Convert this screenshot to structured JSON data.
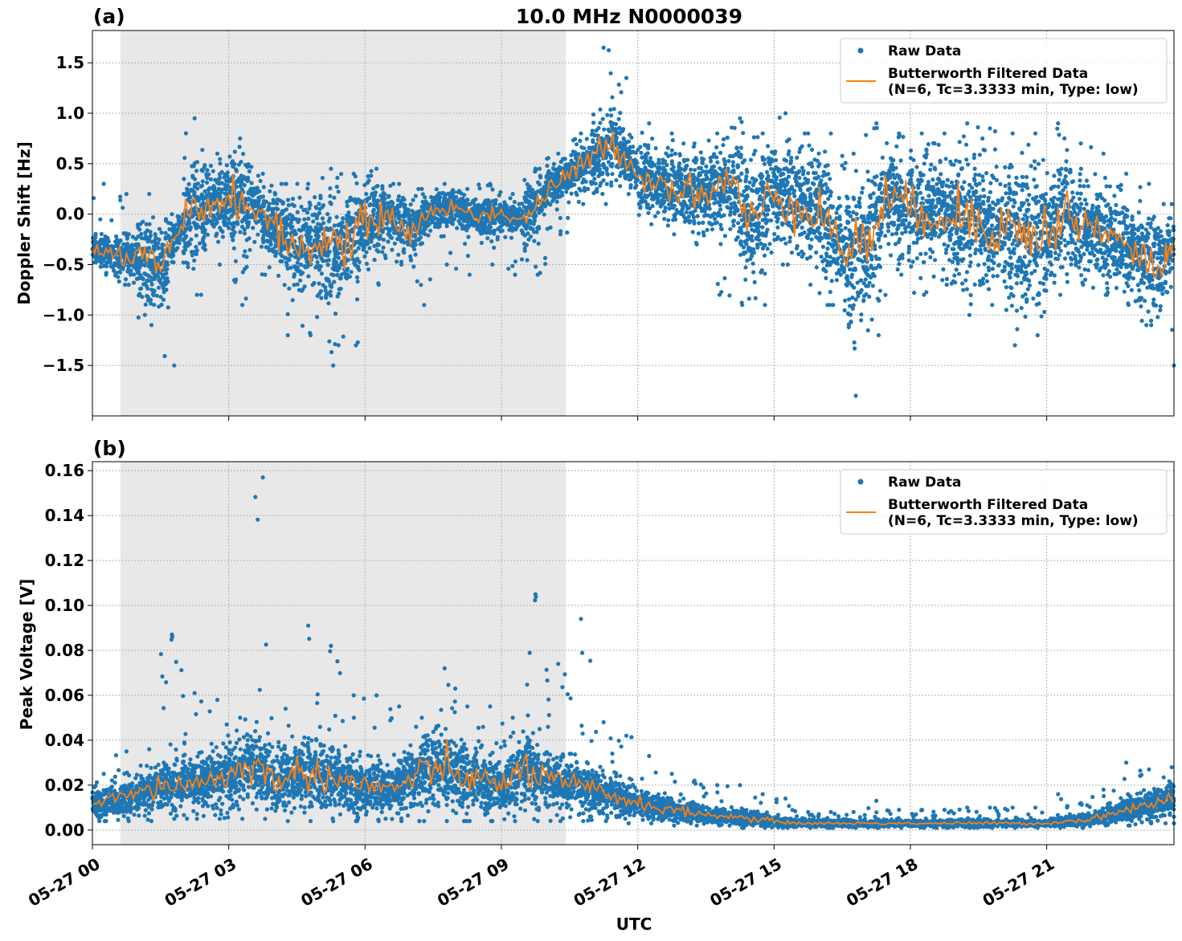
{
  "chart_data": [
    {
      "type": "scatter",
      "panel_label": "(a)",
      "title": "10.0 MHz N0000039",
      "xlabel": "",
      "ylabel": "Doppler Shift [Hz]",
      "ylim": [
        -2.0,
        1.82
      ],
      "yticks": [
        "1.5",
        "1.0",
        "0.5",
        "0.0",
        "−0.5",
        "−1.0",
        "−1.5"
      ],
      "ytick_values": [
        1.5,
        1.0,
        0.5,
        0.0,
        -0.5,
        -1.0,
        -1.5
      ],
      "xlim": [
        "05-27 00:00",
        "05-27 23:48"
      ],
      "grid": true,
      "legend_placement": "top-right",
      "shaded_interval": [
        "05-27 00:37",
        "05-27 10:25"
      ],
      "x": [
        "00:00",
        "00:30",
        "01:00",
        "01:30",
        "02:00",
        "02:30",
        "03:00",
        "03:30",
        "04:00",
        "04:30",
        "05:00",
        "05:30",
        "06:00",
        "06:30",
        "07:00",
        "07:30",
        "08:00",
        "08:30",
        "09:00",
        "09:30",
        "10:00",
        "10:30",
        "11:00",
        "11:30",
        "12:00",
        "12:30",
        "13:00",
        "13:30",
        "14:00",
        "14:30",
        "15:00",
        "15:30",
        "16:00",
        "16:30",
        "17:00",
        "17:30",
        "18:00",
        "18:30",
        "19:00",
        "19:30",
        "20:00",
        "20:30",
        "21:00",
        "21:30",
        "22:00",
        "22:30",
        "23:00",
        "23:30",
        "23:48"
      ],
      "series": [
        {
          "name": "Butterworth Filtered Data\n(N=6, Tc=3.3333 min, Type: low)",
          "kind": "line",
          "color": "#ff7f0e",
          "values": [
            -0.35,
            -0.4,
            -0.45,
            -0.55,
            -0.1,
            0.1,
            0.15,
            0.1,
            -0.15,
            -0.35,
            -0.3,
            -0.3,
            -0.1,
            0.0,
            -0.2,
            0.05,
            0.05,
            0.0,
            0.0,
            -0.05,
            0.2,
            0.4,
            0.55,
            0.7,
            0.4,
            0.3,
            0.25,
            0.2,
            0.35,
            -0.1,
            0.2,
            0.1,
            0.05,
            -0.35,
            -0.3,
            0.2,
            0.0,
            0.05,
            -0.05,
            -0.05,
            -0.15,
            -0.2,
            -0.2,
            0.0,
            -0.15,
            -0.25,
            -0.4,
            -0.55,
            -0.3
          ]
        },
        {
          "name": "Raw Data",
          "kind": "scatter",
          "color": "#1f77b4",
          "min": [
            -0.6,
            -0.7,
            -1.1,
            -1.5,
            -0.8,
            -0.5,
            -0.9,
            -0.6,
            -1.2,
            -1.2,
            -1.5,
            -1.3,
            -0.7,
            -0.5,
            -0.9,
            -0.5,
            -0.6,
            -0.5,
            -0.6,
            -0.6,
            -0.2,
            0.1,
            0.1,
            0.2,
            -0.1,
            -0.2,
            -0.3,
            -0.8,
            -0.9,
            -0.9,
            -0.5,
            -0.7,
            -0.9,
            -1.8,
            -1.2,
            -0.6,
            -0.8,
            -0.7,
            -1.0,
            -0.9,
            -1.3,
            -1.2,
            -0.8,
            -0.7,
            -0.8,
            -0.9,
            -1.1,
            -1.5,
            -0.7
          ],
          "max": [
            0.3,
            0.2,
            0.2,
            0.0,
            0.95,
            0.6,
            0.75,
            0.4,
            0.3,
            0.3,
            0.45,
            0.4,
            0.45,
            0.3,
            0.25,
            0.3,
            0.25,
            0.3,
            0.2,
            0.45,
            0.6,
            0.8,
            1.65,
            1.35,
            0.9,
            0.8,
            0.7,
            0.8,
            0.95,
            0.8,
            1.0,
            0.8,
            0.8,
            0.6,
            0.9,
            0.8,
            0.8,
            0.8,
            0.9,
            0.85,
            0.8,
            0.8,
            0.9,
            0.7,
            0.6,
            0.4,
            0.3,
            0.1,
            0.4
          ]
        }
      ]
    },
    {
      "type": "scatter",
      "panel_label": "(b)",
      "xlabel": "UTC",
      "ylabel": "Peak Voltage [V]",
      "ylim": [
        -0.0065,
        0.164
      ],
      "yticks": [
        "0.16",
        "0.14",
        "0.12",
        "0.10",
        "0.08",
        "0.06",
        "0.04",
        "0.02",
        "0.00"
      ],
      "ytick_values": [
        0.16,
        0.14,
        0.12,
        0.1,
        0.08,
        0.06,
        0.04,
        0.02,
        0.0
      ],
      "xticks": [
        "05-27 00",
        "05-27 03",
        "05-27 06",
        "05-27 09",
        "05-27 12",
        "05-27 15",
        "05-27 18",
        "05-27 21"
      ],
      "xtick_hours": [
        0,
        3,
        6,
        9,
        12,
        15,
        18,
        21
      ],
      "grid": true,
      "legend_placement": "top-right",
      "shaded_interval": [
        "05-27 00:37",
        "05-27 10:25"
      ],
      "x": [
        "00:00",
        "00:30",
        "01:00",
        "01:30",
        "02:00",
        "02:30",
        "03:00",
        "03:30",
        "04:00",
        "04:30",
        "05:00",
        "05:30",
        "06:00",
        "06:30",
        "07:00",
        "07:30",
        "08:00",
        "08:30",
        "09:00",
        "09:30",
        "10:00",
        "10:30",
        "11:00",
        "11:30",
        "12:00",
        "12:30",
        "13:00",
        "13:30",
        "14:00",
        "14:30",
        "15:00",
        "15:30",
        "16:00",
        "16:30",
        "17:00",
        "17:30",
        "18:00",
        "18:30",
        "19:00",
        "19:30",
        "20:00",
        "20:30",
        "21:00",
        "21:30",
        "22:00",
        "22:30",
        "23:00",
        "23:30",
        "23:48"
      ],
      "series": [
        {
          "name": "Butterworth Filtered Data\n(N=6, Tc=3.3333 min, Type: low)",
          "kind": "line",
          "color": "#ff7f0e",
          "values": [
            0.012,
            0.014,
            0.016,
            0.02,
            0.02,
            0.022,
            0.024,
            0.03,
            0.022,
            0.025,
            0.025,
            0.022,
            0.02,
            0.018,
            0.022,
            0.028,
            0.025,
            0.022,
            0.02,
            0.028,
            0.022,
            0.02,
            0.018,
            0.015,
            0.012,
            0.01,
            0.008,
            0.007,
            0.006,
            0.005,
            0.004,
            0.003,
            0.003,
            0.003,
            0.003,
            0.003,
            0.003,
            0.003,
            0.003,
            0.003,
            0.003,
            0.003,
            0.003,
            0.004,
            0.005,
            0.008,
            0.01,
            0.012,
            0.014
          ]
        },
        {
          "name": "Raw Data",
          "kind": "scatter",
          "color": "#1f77b4",
          "min": [
            0.004,
            0.004,
            0.004,
            0.005,
            0.005,
            0.005,
            0.005,
            0.005,
            0.004,
            0.004,
            0.004,
            0.004,
            0.004,
            0.004,
            0.004,
            0.004,
            0.004,
            0.004,
            0.004,
            0.004,
            0.004,
            0.004,
            0.004,
            0.003,
            0.003,
            0.002,
            0.002,
            0.002,
            0.001,
            0.001,
            0.001,
            0.001,
            0.001,
            0.001,
            0.001,
            0.001,
            0.001,
            0.001,
            0.001,
            0.001,
            0.001,
            0.001,
            0.001,
            0.001,
            0.002,
            0.002,
            0.003,
            0.003,
            0.003
          ],
          "max": [
            0.025,
            0.035,
            0.036,
            0.087,
            0.061,
            0.058,
            0.05,
            0.157,
            0.054,
            0.091,
            0.082,
            0.06,
            0.06,
            0.055,
            0.05,
            0.072,
            0.055,
            0.055,
            0.05,
            0.105,
            0.074,
            0.094,
            0.048,
            0.042,
            0.033,
            0.025,
            0.022,
            0.02,
            0.02,
            0.016,
            0.014,
            0.008,
            0.008,
            0.008,
            0.013,
            0.009,
            0.009,
            0.009,
            0.01,
            0.01,
            0.01,
            0.01,
            0.016,
            0.012,
            0.018,
            0.03,
            0.027,
            0.028,
            0.03
          ]
        }
      ]
    }
  ],
  "legend": {
    "raw_label": "Raw Data",
    "filtered_label_line1": "Butterworth Filtered Data",
    "filtered_label_line2": "(N=6, Tc=3.3333 min, Type: low)"
  },
  "colors": {
    "raw": "#1f77b4",
    "filtered": "#ff7f0e",
    "shade": "#e8e8e8"
  }
}
